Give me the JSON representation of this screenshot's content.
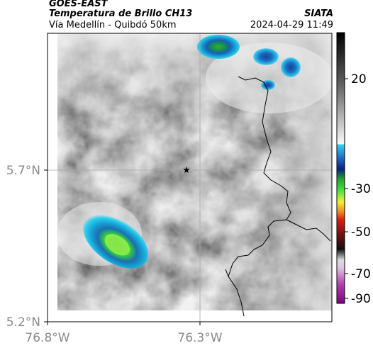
{
  "header": {
    "satellite": "GOES-EAST",
    "product": "Temperatura de Brillo CH13",
    "route": "Vía Medellín - Quibdó 50km",
    "source": "SIATA",
    "datetime": "2024-04-29 11:49"
  },
  "axes": {
    "x_ticks": [
      "76.8°W",
      "76.3°W"
    ],
    "y_ticks": [
      "5.7°N",
      "5.2°N"
    ]
  },
  "colorbar": {
    "ticks": [
      "20",
      "-30",
      "-50",
      "-70",
      "-90"
    ]
  },
  "marker": {
    "name": "star-marker"
  }
}
